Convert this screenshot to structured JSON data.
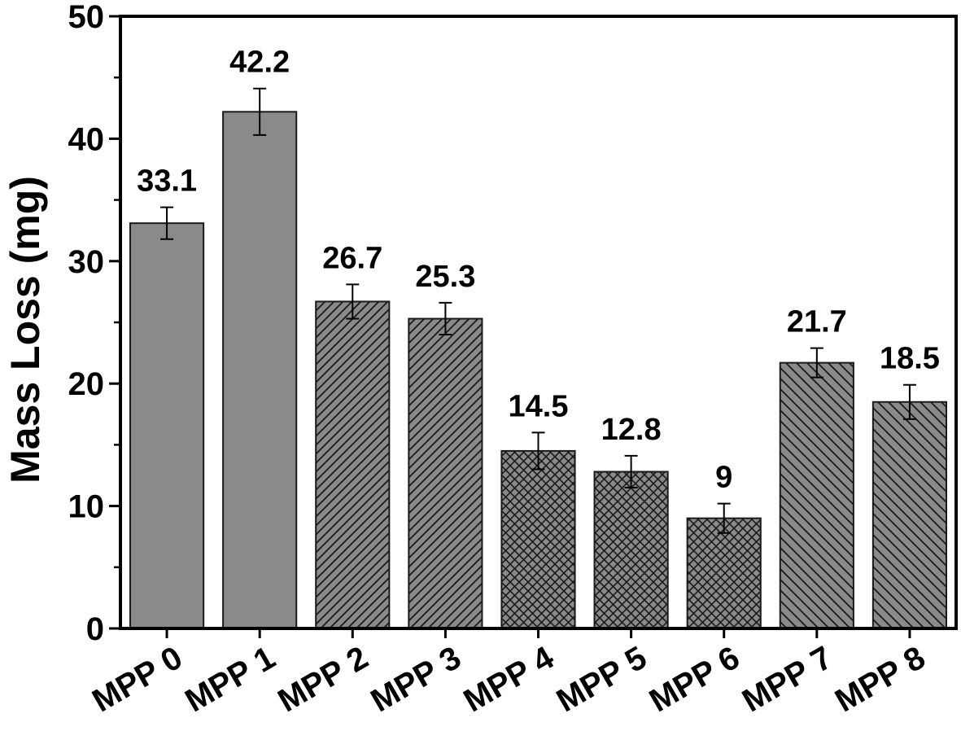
{
  "chart_data": {
    "type": "bar",
    "title": "",
    "xlabel": "",
    "ylabel": "Mass Loss (mg)",
    "ylim": [
      0,
      50
    ],
    "yticks": [
      0,
      10,
      20,
      30,
      40,
      50
    ],
    "grid": false,
    "legend": "none",
    "categories": [
      "MPP 0",
      "MPP 1",
      "MPP 2",
      "MPP 3",
      "MPP 4",
      "MPP 5",
      "MPP 6",
      "MPP 7",
      "MPP 8"
    ],
    "values": [
      33.1,
      42.2,
      26.7,
      25.3,
      14.5,
      12.8,
      9,
      21.7,
      18.5
    ],
    "value_labels": [
      "33.1",
      "42.2",
      "26.7",
      "25.3",
      "14.5",
      "12.8",
      "9",
      "21.7",
      "18.5"
    ],
    "errors": [
      1.3,
      1.9,
      1.4,
      1.3,
      1.5,
      1.3,
      1.2,
      1.2,
      1.4
    ],
    "patterns": [
      "solid",
      "solid",
      "diagonal-up",
      "diagonal-up",
      "crosshatch",
      "crosshatch",
      "crosshatch",
      "diagonal-down",
      "diagonal-down"
    ],
    "colors": {
      "bar_fill": "#8a8a8a",
      "hatch": "#1a1a1a",
      "axis": "#000000"
    }
  }
}
